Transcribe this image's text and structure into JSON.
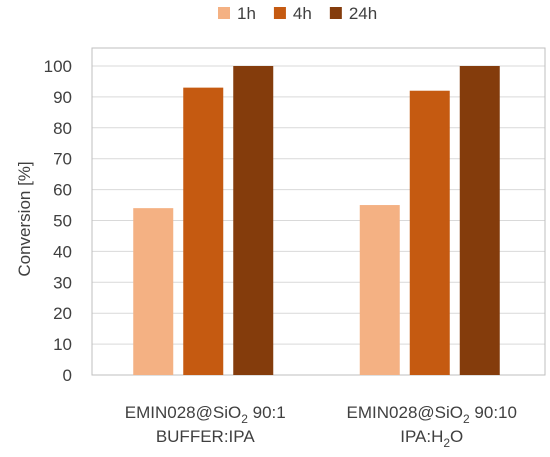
{
  "chart_data": {
    "type": "bar",
    "title": "",
    "xlabel": "",
    "ylabel": "Conversion [%]",
    "ylim": [
      0,
      100
    ],
    "yticks": [
      "0",
      "10",
      "20",
      "30",
      "40",
      "50",
      "60",
      "70",
      "80",
      "90",
      "100"
    ],
    "grid": true,
    "legend_position": "top",
    "categories": [
      {
        "lines": [
          [
            {
              "t": "EMIN028@SiO"
            },
            {
              "t": "2",
              "sub": true
            },
            {
              "t": " 90:1"
            }
          ],
          [
            {
              "t": "BUFFER:IPA"
            }
          ]
        ]
      },
      {
        "lines": [
          [
            {
              "t": "EMIN028@SiO"
            },
            {
              "t": "2",
              "sub": true
            },
            {
              "t": " 90:10"
            }
          ],
          [
            {
              "t": "IPA:H"
            },
            {
              "t": "2",
              "sub": true
            },
            {
              "t": "O"
            }
          ]
        ]
      }
    ],
    "series": [
      {
        "name": "1h",
        "color": "#F4B183",
        "values": [
          54,
          55
        ]
      },
      {
        "name": "4h",
        "color": "#C55A11",
        "values": [
          93,
          92
        ]
      },
      {
        "name": "24h",
        "color": "#843C0C",
        "values": [
          100,
          100
        ]
      }
    ],
    "colors": {
      "grid": "#D9D9D9",
      "axis": "#BFBFBF",
      "text": "#404040"
    }
  }
}
